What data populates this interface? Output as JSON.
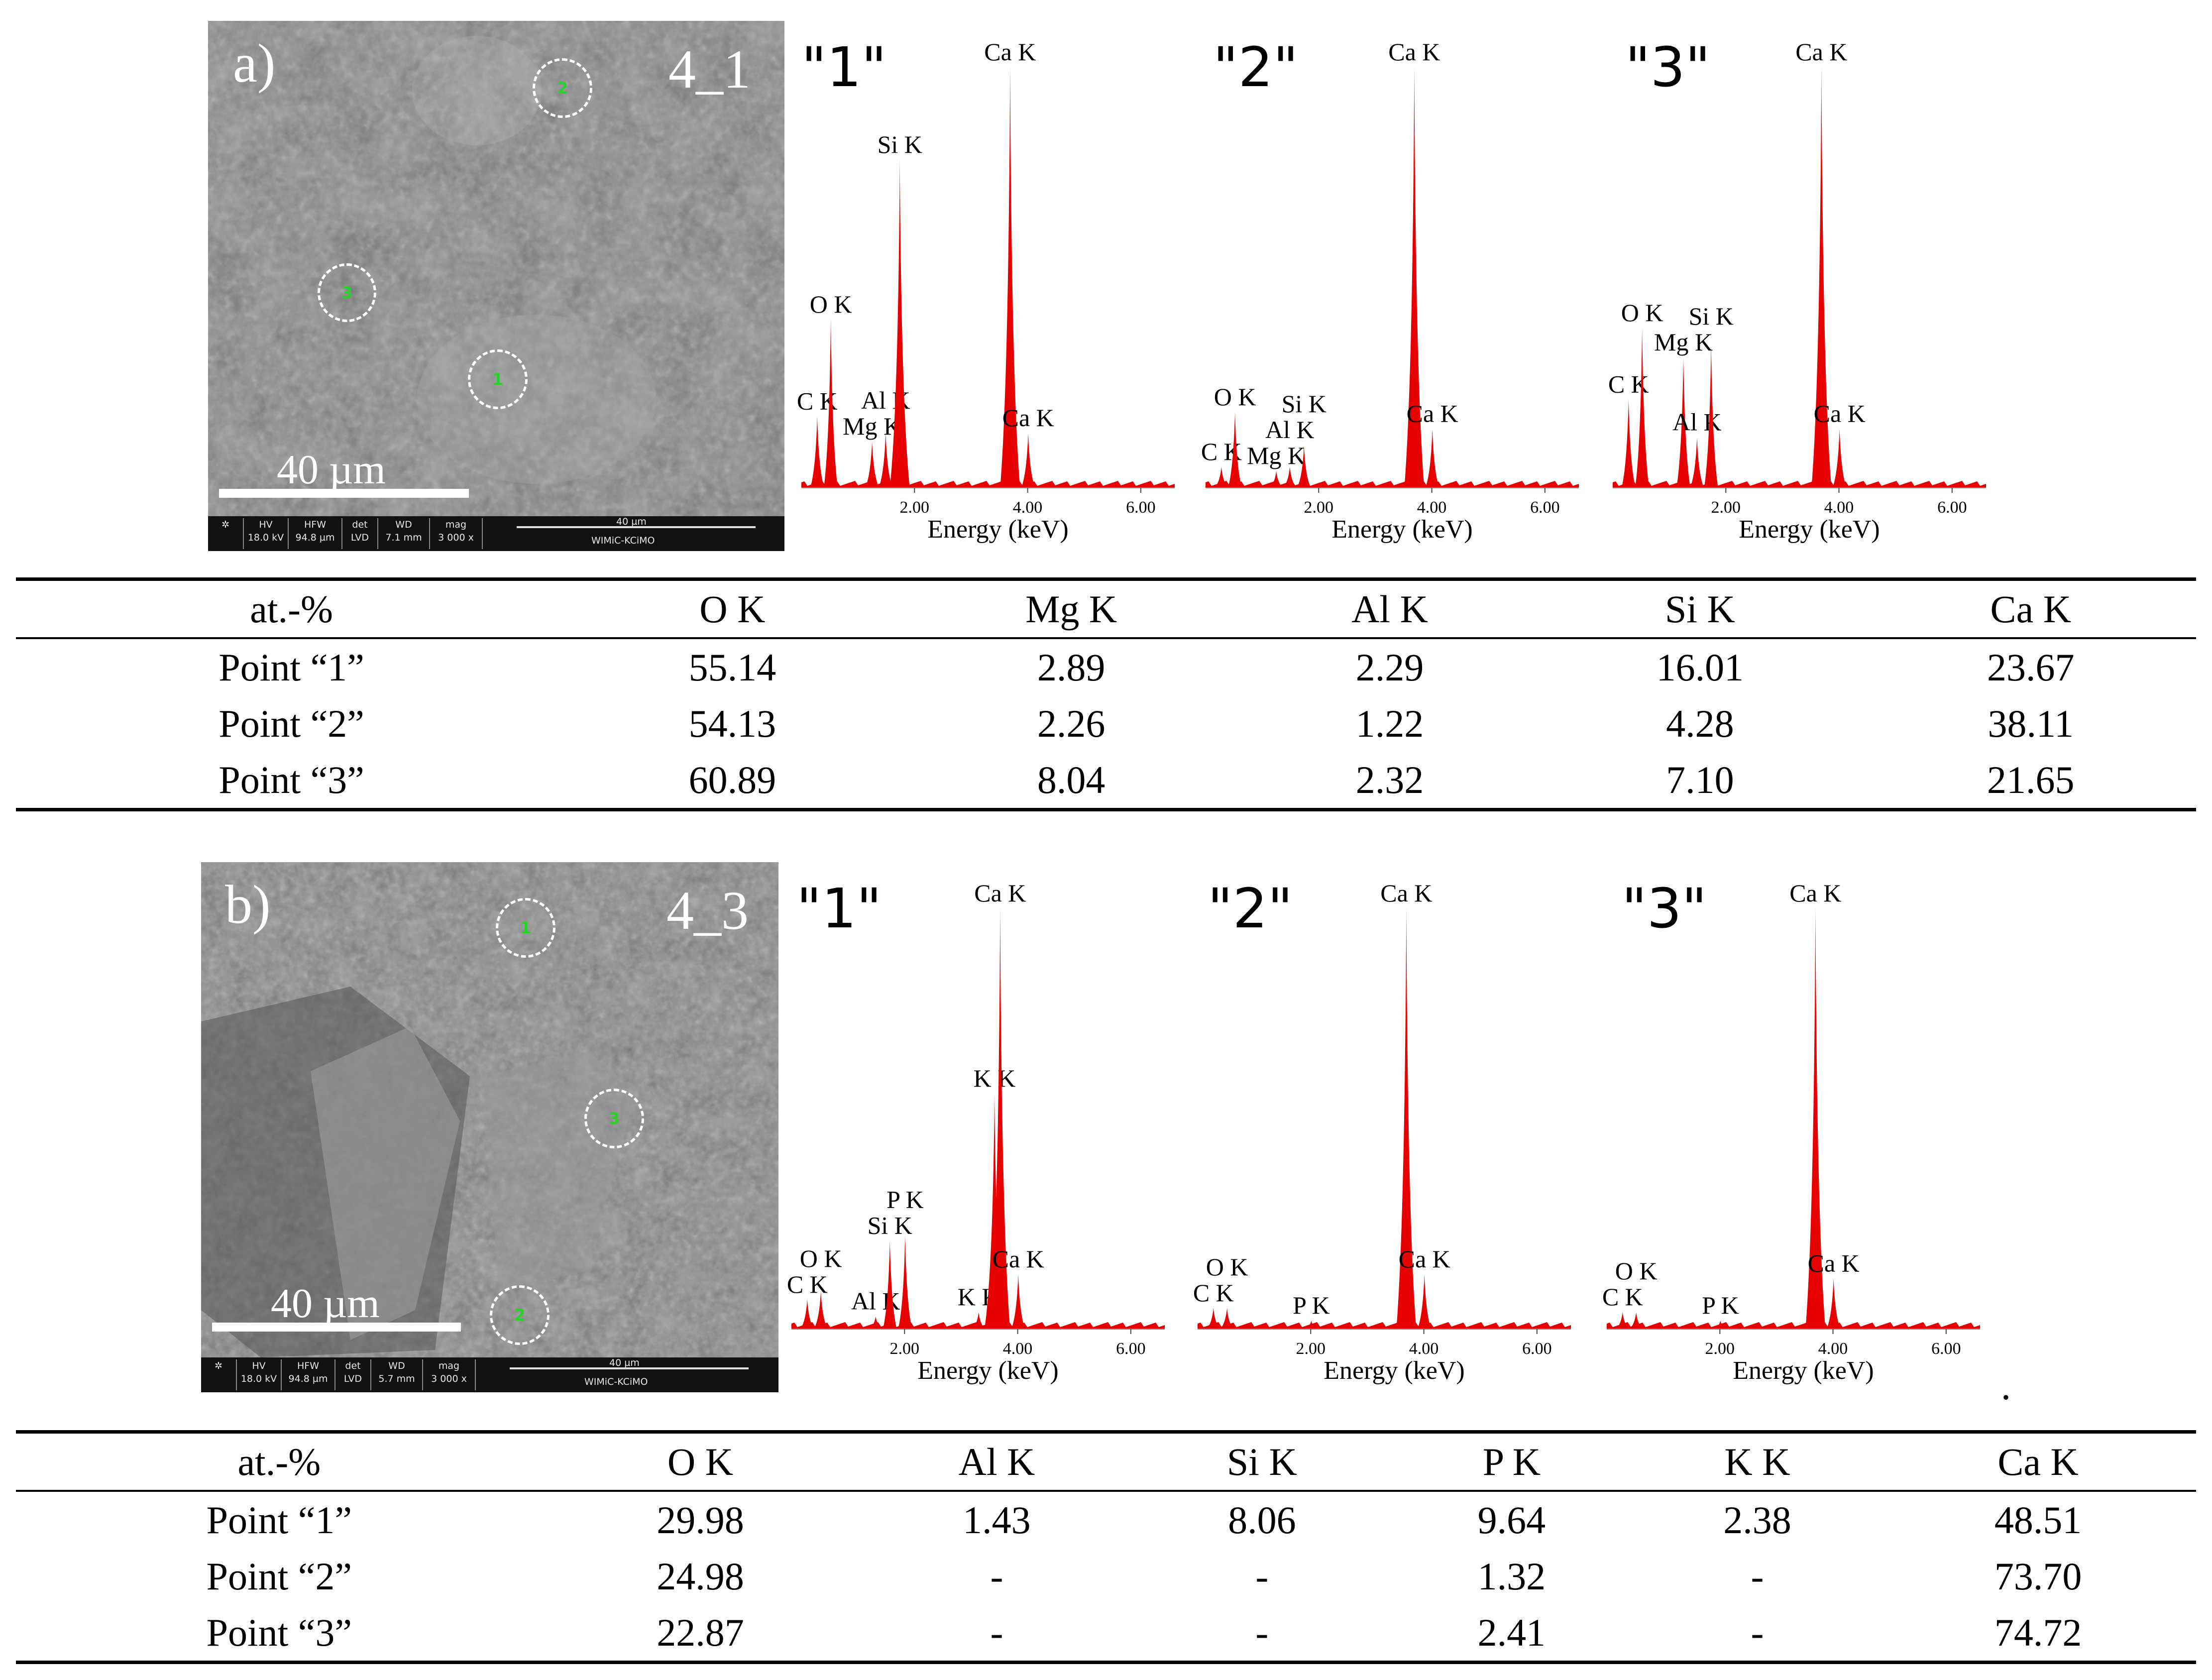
{
  "panels": [
    {
      "label": "a)",
      "sample": "4_1",
      "scale_text": "40 µm",
      "databar": {
        "headers": [
          "HV",
          "HFW",
          "det",
          "WD",
          "mag"
        ],
        "values": [
          "18.0 kV",
          "94.8 µm",
          "LVD",
          "7.1 mm",
          "3 000 x"
        ],
        "bar_label": "40 µm",
        "lab": "WIMiC-KCiMO"
      },
      "points": [
        "1",
        "2",
        "3"
      ],
      "spectra": [
        {
          "title": "\"1\"",
          "xlabel": "Energy (keV)",
          "ticks": [
            "2.00",
            "4.00",
            "6.00"
          ],
          "peaks": [
            {
              "label": "C K",
              "keV": 0.28,
              "h": 0.17
            },
            {
              "label": "O K",
              "keV": 0.52,
              "h": 0.4
            },
            {
              "label": "Mg K",
              "keV": 1.25,
              "h": 0.11
            },
            {
              "label": "Al K",
              "keV": 1.49,
              "h": 0.13
            },
            {
              "label": "Si K",
              "keV": 1.74,
              "h": 0.78
            },
            {
              "label": "Ca K",
              "keV": 3.69,
              "h": 1.0
            },
            {
              "label": "Ca K",
              "keV": 4.01,
              "h": 0.13
            }
          ]
        },
        {
          "title": "\"2\"",
          "xlabel": "Energy (keV)",
          "ticks": [
            "2.00",
            "4.00",
            "6.00"
          ],
          "peaks": [
            {
              "label": "C K",
              "keV": 0.28,
              "h": 0.05
            },
            {
              "label": "O K",
              "keV": 0.52,
              "h": 0.18
            },
            {
              "label": "Mg K",
              "keV": 1.25,
              "h": 0.04
            },
            {
              "label": "Al K",
              "keV": 1.49,
              "h": 0.05
            },
            {
              "label": "Si K",
              "keV": 1.74,
              "h": 0.1
            },
            {
              "label": "Ca K",
              "keV": 3.69,
              "h": 1.0
            },
            {
              "label": "Ca K",
              "keV": 4.01,
              "h": 0.14
            }
          ]
        },
        {
          "title": "\"3\"",
          "xlabel": "Energy (keV)",
          "ticks": [
            "2.00",
            "4.00",
            "6.00"
          ],
          "peaks": [
            {
              "label": "C K",
              "keV": 0.28,
              "h": 0.21
            },
            {
              "label": "O K",
              "keV": 0.52,
              "h": 0.38
            },
            {
              "label": "Mg K",
              "keV": 1.25,
              "h": 0.31
            },
            {
              "label": "Al K",
              "keV": 1.49,
              "h": 0.12
            },
            {
              "label": "Si K",
              "keV": 1.74,
              "h": 0.34
            },
            {
              "label": "Ca K",
              "keV": 3.69,
              "h": 1.0
            },
            {
              "label": "Ca K",
              "keV": 4.01,
              "h": 0.14
            }
          ]
        }
      ],
      "table": {
        "headers": [
          "at.-%",
          "O K",
          "Mg K",
          "Al K",
          "Si K",
          "Ca K"
        ],
        "rows": [
          [
            "Point “1”",
            "55.14",
            "2.89",
            "2.29",
            "16.01",
            "23.67"
          ],
          [
            "Point “2”",
            "54.13",
            "2.26",
            "1.22",
            "4.28",
            "38.11"
          ],
          [
            "Point “3”",
            "60.89",
            "8.04",
            "2.32",
            "7.10",
            "21.65"
          ]
        ]
      }
    },
    {
      "label": "b)",
      "sample": "4_3",
      "scale_text": "40 µm",
      "databar": {
        "headers": [
          "HV",
          "HFW",
          "det",
          "WD",
          "mag"
        ],
        "values": [
          "18.0 kV",
          "94.8 µm",
          "LVD",
          "5.7 mm",
          "3 000 x"
        ],
        "bar_label": "40 µm",
        "lab": "WIMiC-KCiMO"
      },
      "points": [
        "1",
        "2",
        "3"
      ],
      "spectra": [
        {
          "title": "\"1\"",
          "xlabel": "Energy (keV)",
          "ticks": [
            "2.00",
            "4.00",
            "6.00"
          ],
          "peaks": [
            {
              "label": "C K",
              "keV": 0.28,
              "h": 0.07
            },
            {
              "label": "O K",
              "keV": 0.52,
              "h": 0.09
            },
            {
              "label": "Al K",
              "keV": 1.49,
              "h": 0.03
            },
            {
              "label": "Si K",
              "keV": 1.74,
              "h": 0.21
            },
            {
              "label": "P K",
              "keV": 2.01,
              "h": 0.22
            },
            {
              "label": "K K",
              "keV": 3.31,
              "h": 0.04
            },
            {
              "label": "K K",
              "keV": 3.59,
              "h": 0.56
            },
            {
              "label": "Ca K",
              "keV": 3.69,
              "h": 1.0
            },
            {
              "label": "Ca K",
              "keV": 4.01,
              "h": 0.13
            }
          ]
        },
        {
          "title": "\"2\"",
          "xlabel": "Energy (keV)",
          "ticks": [
            "2.00",
            "4.00",
            "6.00"
          ],
          "peaks": [
            {
              "label": "C K",
              "keV": 0.28,
              "h": 0.05
            },
            {
              "label": "O K",
              "keV": 0.52,
              "h": 0.05
            },
            {
              "label": "P K",
              "keV": 2.01,
              "h": 0.02
            },
            {
              "label": "Ca K",
              "keV": 3.69,
              "h": 1.0
            },
            {
              "label": "Ca K",
              "keV": 4.01,
              "h": 0.13
            }
          ]
        },
        {
          "title": "\"3\"",
          "xlabel": "Energy (keV)",
          "ticks": [
            "2.00",
            "4.00",
            "6.00"
          ],
          "peaks": [
            {
              "label": "C K",
              "keV": 0.28,
              "h": 0.04
            },
            {
              "label": "O K",
              "keV": 0.52,
              "h": 0.04
            },
            {
              "label": "P K",
              "keV": 2.01,
              "h": 0.02
            },
            {
              "label": "Ca K",
              "keV": 3.69,
              "h": 1.0
            },
            {
              "label": "Ca K",
              "keV": 4.01,
              "h": 0.12
            }
          ]
        }
      ],
      "table": {
        "headers": [
          "at.-%",
          "O K",
          "Al K",
          "Si K",
          "P K",
          "K K",
          "Ca K"
        ],
        "rows": [
          [
            "Point “1”",
            "29.98",
            "1.43",
            "8.06",
            "9.64",
            "2.38",
            "48.51"
          ],
          [
            "Point “2”",
            "24.98",
            "-",
            "-",
            "1.32",
            "-",
            "73.70"
          ],
          [
            "Point “3”",
            "22.87",
            "-",
            "-",
            "2.41",
            "-",
            "74.72"
          ]
        ]
      }
    }
  ],
  "colors": {
    "spectrum": "#e60000",
    "point_label": "#27d32b"
  }
}
